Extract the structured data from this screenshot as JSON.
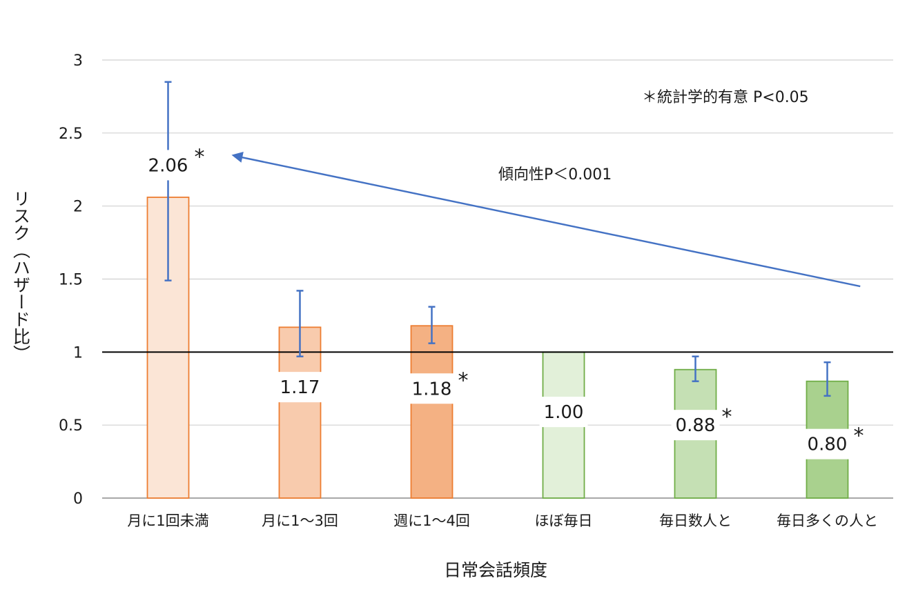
{
  "chart_data": {
    "type": "bar",
    "xlabel": "日常会話頻度",
    "ylabel": "リスク（ハザード比）",
    "ylim": [
      0,
      3
    ],
    "yticks": [
      "0",
      "0.5",
      "1",
      "1.5",
      "2",
      "2.5",
      "3"
    ],
    "grid": true,
    "reference_line": 1,
    "categories": [
      "月に1回未満",
      "月に1〜3回",
      "週に1〜4回",
      "ほぼ毎日",
      "毎日数人と",
      "毎日多くの人と"
    ],
    "values": [
      2.06,
      1.17,
      1.18,
      1.0,
      0.88,
      0.8
    ],
    "value_labels": [
      "2.06",
      "1.17",
      "1.18",
      "1.00",
      "0.88",
      "0.80"
    ],
    "significant": [
      true,
      false,
      true,
      false,
      true,
      true
    ],
    "error_low": [
      1.49,
      0.97,
      1.06,
      1.0,
      0.8,
      0.7
    ],
    "error_high": [
      2.85,
      1.42,
      1.31,
      1.0,
      0.97,
      0.93
    ],
    "bar_fill": [
      "#fbe5d6",
      "#f8cbad",
      "#f4b183",
      "#e2f0d9",
      "#c5e0b4",
      "#a9d18e"
    ],
    "bar_stroke": [
      "#ed7d31",
      "#ed7d31",
      "#ed7d31",
      "#70ad47",
      "#70ad47",
      "#70ad47"
    ],
    "error_color": "#4472c4",
    "significance_note": "＊統計学的有意 P<0.05",
    "trend_label": "傾向性P＜0.001",
    "star_symbol": "*"
  }
}
